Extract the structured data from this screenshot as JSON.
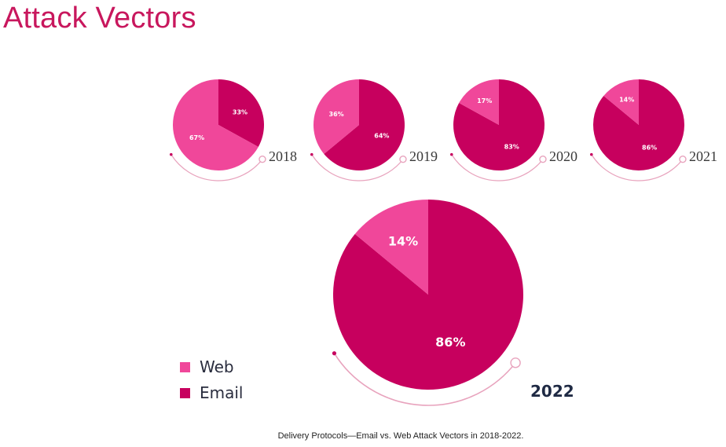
{
  "title": "Attack Vectors",
  "caption": "Delivery Protocols—Email vs. Web Attack Vectors in 2018-2022.",
  "colors": {
    "web": "#f0479a",
    "email": "#c7005e",
    "title": "#c8175d",
    "arc": "#e8a3bd",
    "year_small": "#3a3a3a",
    "year_large": "#1f2a44"
  },
  "chart_data": {
    "type": "pie",
    "legend": {
      "position": "bottom-left",
      "entries": [
        {
          "name": "Web",
          "color": "#f0479a"
        },
        {
          "name": "Email",
          "color": "#c7005e"
        }
      ]
    },
    "pies": [
      {
        "year": "2018",
        "slices": [
          {
            "name": "Web",
            "value": 67,
            "label": "67%"
          },
          {
            "name": "Email",
            "value": 33,
            "label": "33%"
          }
        ]
      },
      {
        "year": "2019",
        "slices": [
          {
            "name": "Web",
            "value": 36,
            "label": "36%"
          },
          {
            "name": "Email",
            "value": 64,
            "label": "64%"
          }
        ]
      },
      {
        "year": "2020",
        "slices": [
          {
            "name": "Web",
            "value": 17,
            "label": "17%"
          },
          {
            "name": "Email",
            "value": 83,
            "label": "83%"
          }
        ]
      },
      {
        "year": "2021",
        "slices": [
          {
            "name": "Web",
            "value": 14,
            "label": "14%"
          },
          {
            "name": "Email",
            "value": 86,
            "label": "86%"
          }
        ]
      },
      {
        "year": "2022",
        "slices": [
          {
            "name": "Web",
            "value": 14,
            "label": "14%"
          },
          {
            "name": "Email",
            "value": 86,
            "label": "86%"
          }
        ]
      }
    ]
  }
}
